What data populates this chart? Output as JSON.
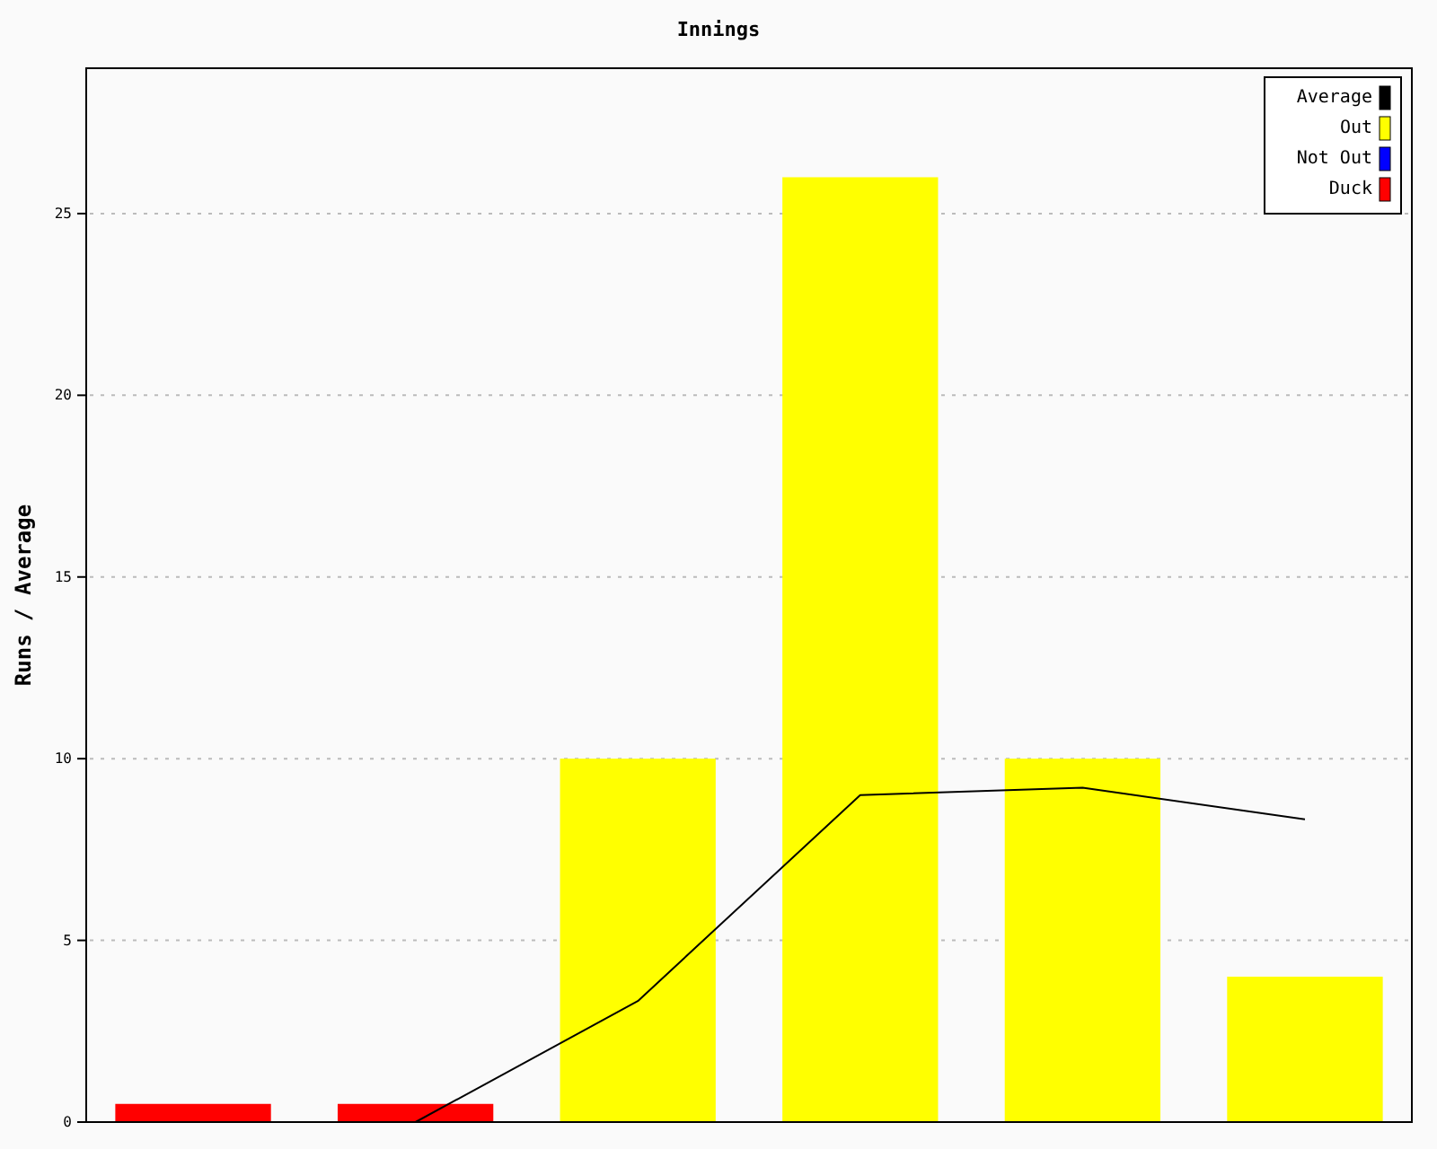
{
  "chart_data": {
    "type": "bar",
    "title": "Innings",
    "ylabel": "Runs / Average",
    "categories": [
      null,
      null,
      null,
      null,
      null,
      null
    ],
    "series": [
      {
        "name": "Average",
        "type": "line",
        "color": "#000000",
        "values": [
          0,
          0,
          3.33,
          9,
          9.2,
          8.33
        ]
      },
      {
        "name": "Out",
        "color": "#ffff00",
        "values": [
          null,
          null,
          10,
          26,
          10,
          4
        ]
      },
      {
        "name": "Not Out",
        "color": "#0000ff",
        "values": [
          null,
          null,
          null,
          null,
          null,
          null
        ]
      },
      {
        "name": "Duck",
        "color": "#ff0000",
        "values": [
          0.5,
          0.5,
          null,
          null,
          null,
          null
        ]
      }
    ],
    "ylim": [
      0,
      29
    ],
    "yticks": [
      0,
      5,
      10,
      15,
      20,
      25
    ],
    "grid": "y",
    "legend": "top right",
    "marker": "none"
  }
}
